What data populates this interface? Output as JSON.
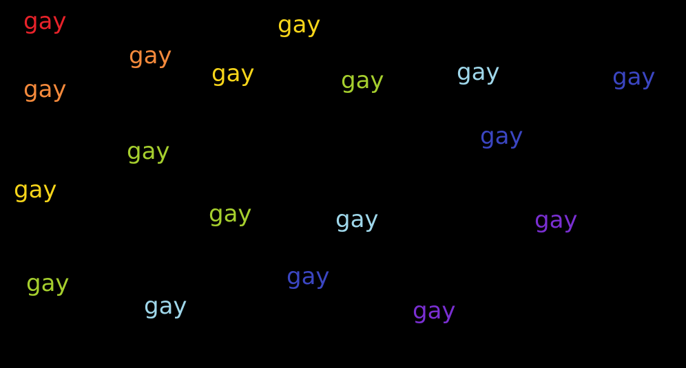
{
  "words": [
    {
      "text": "gay",
      "color": "#e8222a"
    },
    {
      "text": "gay",
      "color": "#f7d51a"
    },
    {
      "text": "gay",
      "color": "#f58a3c"
    },
    {
      "text": "gay",
      "color": "#f7d51a"
    },
    {
      "text": "gay",
      "color": "#f58a3c"
    },
    {
      "text": "gay",
      "color": "#a6cf2e"
    },
    {
      "text": "gay",
      "color": "#9fd7ea"
    },
    {
      "text": "gay",
      "color": "#3b46c2"
    },
    {
      "text": "gay",
      "color": "#3b46c2"
    },
    {
      "text": "gay",
      "color": "#a6cf2e"
    },
    {
      "text": "gay",
      "color": "#f7d51a"
    },
    {
      "text": "gay",
      "color": "#a6cf2e"
    },
    {
      "text": "gay",
      "color": "#9fd7ea"
    },
    {
      "text": "gay",
      "color": "#7a2fd2"
    },
    {
      "text": "gay",
      "color": "#a6cf2e"
    },
    {
      "text": "gay",
      "color": "#3b46c2"
    },
    {
      "text": "gay",
      "color": "#9fd7ea"
    },
    {
      "text": "gay",
      "color": "#7a2fd2"
    }
  ]
}
